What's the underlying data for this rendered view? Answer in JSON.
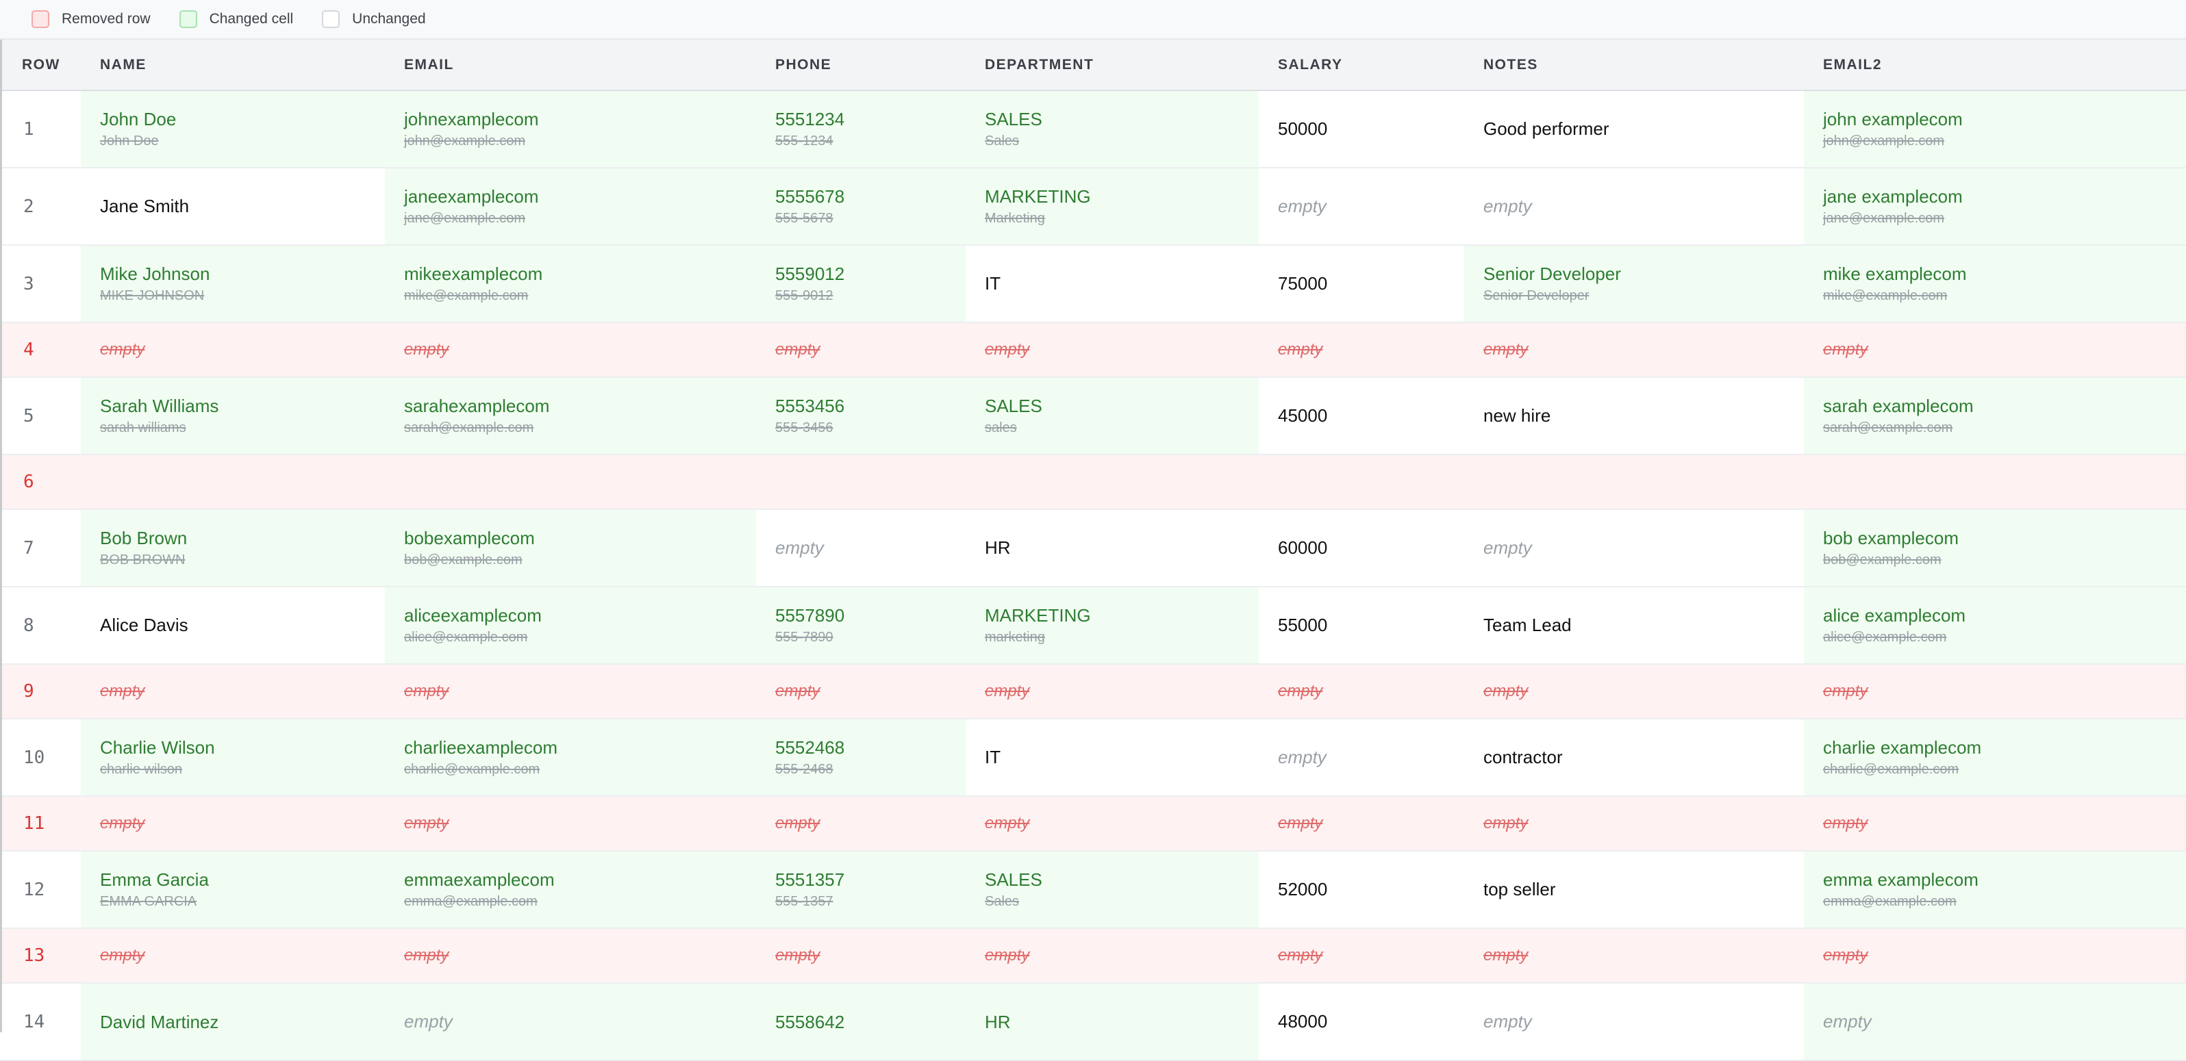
{
  "legend": {
    "removed_label": "Removed row",
    "changed_label": "Changed cell",
    "unchanged_label": "Unchanged"
  },
  "colors": {
    "removed_bg": "#fef2f2",
    "changed_bg": "#f1fcf2",
    "new_text": "#2e7d32",
    "removed_text": "#d93636"
  },
  "columns": [
    "ROW",
    "NAME",
    "EMAIL",
    "PHONE",
    "DEPARTMENT",
    "SALARY",
    "NOTES",
    "EMAIL2"
  ],
  "empty_label": "empty",
  "rows": [
    {
      "row": "1",
      "state": "normal",
      "cells": [
        {
          "s": "changed",
          "new": "John Doe",
          "old": "John Doe"
        },
        {
          "s": "changed",
          "new": "johnexamplecom",
          "old": "john@example.com"
        },
        {
          "s": "changed",
          "new": "5551234",
          "old": "555-1234"
        },
        {
          "s": "changed",
          "new": "SALES",
          "old": "Sales"
        },
        {
          "s": "unchanged",
          "val": "50000"
        },
        {
          "s": "unchanged",
          "val": "Good performer"
        },
        {
          "s": "changed",
          "new": "john examplecom",
          "old": "john@example.com"
        }
      ]
    },
    {
      "row": "2",
      "state": "normal",
      "cells": [
        {
          "s": "unchanged",
          "val": "Jane Smith"
        },
        {
          "s": "changed",
          "new": "janeexamplecom",
          "old": "jane@example.com"
        },
        {
          "s": "changed",
          "new": "5555678",
          "old": "555-5678"
        },
        {
          "s": "changed",
          "new": "MARKETING",
          "old": "Marketing"
        },
        {
          "s": "unchanged",
          "empty": true
        },
        {
          "s": "unchanged",
          "empty": true
        },
        {
          "s": "changed",
          "new": "jane examplecom",
          "old": "jane@example.com"
        }
      ]
    },
    {
      "row": "3",
      "state": "normal",
      "cells": [
        {
          "s": "changed",
          "new": "Mike Johnson",
          "old": "MIKE JOHNSON"
        },
        {
          "s": "changed",
          "new": "mikeexamplecom",
          "old": "mike@example.com"
        },
        {
          "s": "changed",
          "new": "5559012",
          "old": "555-9012"
        },
        {
          "s": "unchanged",
          "val": "IT"
        },
        {
          "s": "unchanged",
          "val": "75000"
        },
        {
          "s": "changed",
          "new": "Senior Developer",
          "old": "Senior Developer"
        },
        {
          "s": "changed",
          "new": "mike examplecom",
          "old": "mike@example.com"
        }
      ]
    },
    {
      "row": "4",
      "state": "removed"
    },
    {
      "row": "5",
      "state": "normal",
      "cells": [
        {
          "s": "changed",
          "new": "Sarah Williams",
          "old": "sarah williams"
        },
        {
          "s": "changed",
          "new": "sarahexamplecom",
          "old": "sarah@example.com"
        },
        {
          "s": "changed",
          "new": "5553456",
          "old": "555-3456"
        },
        {
          "s": "changed",
          "new": "SALES",
          "old": "sales"
        },
        {
          "s": "unchanged",
          "val": "45000"
        },
        {
          "s": "unchanged",
          "val": "new hire"
        },
        {
          "s": "changed",
          "new": "sarah examplecom",
          "old": "sarah@example.com"
        }
      ]
    },
    {
      "row": "6",
      "state": "removed-blank"
    },
    {
      "row": "7",
      "state": "normal",
      "cells": [
        {
          "s": "changed",
          "new": "Bob Brown",
          "old": "BOB BROWN"
        },
        {
          "s": "changed",
          "new": "bobexamplecom",
          "old": "bob@example.com"
        },
        {
          "s": "unchanged",
          "empty": true
        },
        {
          "s": "unchanged",
          "val": "HR"
        },
        {
          "s": "unchanged",
          "val": "60000"
        },
        {
          "s": "unchanged",
          "empty": true
        },
        {
          "s": "changed",
          "new": "bob examplecom",
          "old": "bob@example.com"
        }
      ]
    },
    {
      "row": "8",
      "state": "normal",
      "cells": [
        {
          "s": "unchanged",
          "val": "Alice Davis"
        },
        {
          "s": "changed",
          "new": "aliceexamplecom",
          "old": "alice@example.com"
        },
        {
          "s": "changed",
          "new": "5557890",
          "old": "555-7890"
        },
        {
          "s": "changed",
          "new": "MARKETING",
          "old": "marketing"
        },
        {
          "s": "unchanged",
          "val": "55000"
        },
        {
          "s": "unchanged",
          "val": "Team Lead"
        },
        {
          "s": "changed",
          "new": "alice examplecom",
          "old": "alice@example.com"
        }
      ]
    },
    {
      "row": "9",
      "state": "removed"
    },
    {
      "row": "10",
      "state": "normal",
      "cells": [
        {
          "s": "changed",
          "new": "Charlie Wilson",
          "old": "charlie wilson"
        },
        {
          "s": "changed",
          "new": "charlieexamplecom",
          "old": "charlie@example.com"
        },
        {
          "s": "changed",
          "new": "5552468",
          "old": "555-2468"
        },
        {
          "s": "unchanged",
          "val": "IT"
        },
        {
          "s": "unchanged",
          "empty": true
        },
        {
          "s": "unchanged",
          "val": "contractor"
        },
        {
          "s": "changed",
          "new": "charlie examplecom",
          "old": "charlie@example.com"
        }
      ]
    },
    {
      "row": "11",
      "state": "removed"
    },
    {
      "row": "12",
      "state": "normal",
      "cells": [
        {
          "s": "changed",
          "new": "Emma Garcia",
          "old": "EMMA GARCIA"
        },
        {
          "s": "changed",
          "new": "emmaexamplecom",
          "old": "emma@example.com"
        },
        {
          "s": "changed",
          "new": "5551357",
          "old": "555-1357"
        },
        {
          "s": "changed",
          "new": "SALES",
          "old": "Sales"
        },
        {
          "s": "unchanged",
          "val": "52000"
        },
        {
          "s": "unchanged",
          "val": "top seller"
        },
        {
          "s": "changed",
          "new": "emma examplecom",
          "old": "emma@example.com"
        }
      ]
    },
    {
      "row": "13",
      "state": "removed"
    },
    {
      "row": "14",
      "state": "normal",
      "cells": [
        {
          "s": "changed",
          "new": "David Martinez",
          "old": ""
        },
        {
          "s": "changed",
          "empty": true
        },
        {
          "s": "changed",
          "new": "5558642",
          "old": ""
        },
        {
          "s": "changed",
          "new": "HR",
          "old": ""
        },
        {
          "s": "unchanged",
          "val": "48000"
        },
        {
          "s": "unchanged",
          "empty": true
        },
        {
          "s": "changed",
          "empty": true
        }
      ]
    }
  ]
}
